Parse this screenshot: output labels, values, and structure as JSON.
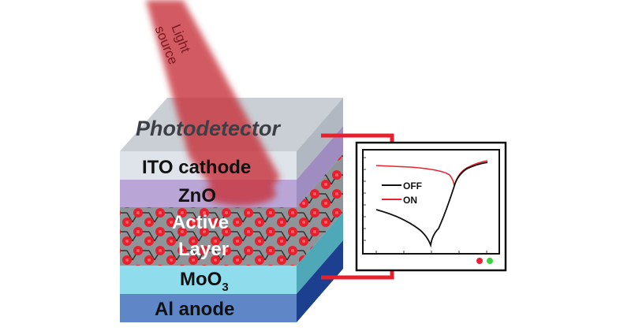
{
  "light_source": {
    "line1": "Light",
    "line2": "source"
  },
  "device": {
    "top_label": "Photodetector",
    "layers": [
      {
        "name": "ITO cathode",
        "color": "#dfe3ea"
      },
      {
        "name": "ZnO",
        "color": "#b9a6d6"
      },
      {
        "name_line1": "Active",
        "name_line2": "Layer",
        "color": "#8c9295"
      },
      {
        "name": "MoO",
        "subscript": "3",
        "color": "#8fdcec"
      },
      {
        "name": "Al anode",
        "color": "#5f86c6"
      }
    ]
  },
  "monitor": {
    "legend": [
      {
        "label": "OFF",
        "color": "#111111"
      },
      {
        "label": "ON",
        "color": "#e8222f"
      }
    ],
    "indicator_colors": [
      "#e8203a",
      "#3bd33b"
    ]
  },
  "colors": {
    "wire": "#e8202e",
    "beam": "#c8303a"
  }
}
